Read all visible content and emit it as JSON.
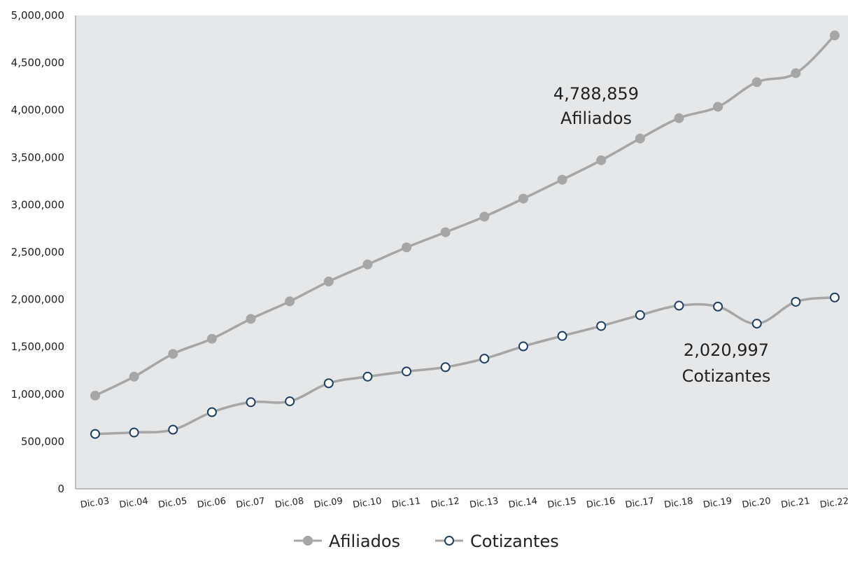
{
  "chart_data": {
    "type": "line",
    "categories": [
      "Dic.03",
      "Dic.04",
      "Dic.05",
      "Dic.06",
      "Dic.07",
      "Dic.08",
      "Dic.09",
      "Dic.10",
      "Dic.11",
      "Dic.12",
      "Dic.13",
      "Dic.14",
      "Dic.15",
      "Dic.16",
      "Dic.17",
      "Dic.18",
      "Dic.19",
      "Dic.20",
      "Dic.21",
      "Dic.22"
    ],
    "series": [
      {
        "name": "Afiliados",
        "color": "#a6a6a6",
        "marker": "filled-circle",
        "values": [
          985000,
          1185000,
          1425000,
          1585000,
          1795000,
          1980000,
          2190000,
          2370000,
          2550000,
          2710000,
          2875000,
          3065000,
          3265000,
          3470000,
          3700000,
          3915000,
          4035000,
          4295000,
          4390000,
          4788859
        ]
      },
      {
        "name": "Cotizantes",
        "color": "#a6a6a6",
        "marker_color": "#1f3f63",
        "marker": "hollow-circle",
        "values": [
          580000,
          595000,
          625000,
          810000,
          915000,
          925000,
          1115000,
          1185000,
          1240000,
          1285000,
          1375000,
          1505000,
          1615000,
          1720000,
          1835000,
          1935000,
          1925000,
          1745000,
          1975000,
          2020997
        ]
      }
    ],
    "ylim": [
      0,
      5000000
    ],
    "yticks": [
      "0",
      "500,000",
      "1,000,000",
      "1,500,000",
      "2,000,000",
      "2,500,000",
      "3,000,000",
      "3,500,000",
      "4,000,000",
      "4,500,000",
      "5,000,000"
    ],
    "ytick_values": [
      0,
      500000,
      1000000,
      1500000,
      2000000,
      2500000,
      3000000,
      3500000,
      4000000,
      4500000,
      5000000
    ],
    "annotations": [
      {
        "line1": "4,788,859",
        "line2": "Afiliados"
      },
      {
        "line1": "2,020,997",
        "line2": "Cotizantes"
      }
    ],
    "plot_background": "#e6e7e8",
    "legend_position": "bottom-center",
    "grid": false
  }
}
